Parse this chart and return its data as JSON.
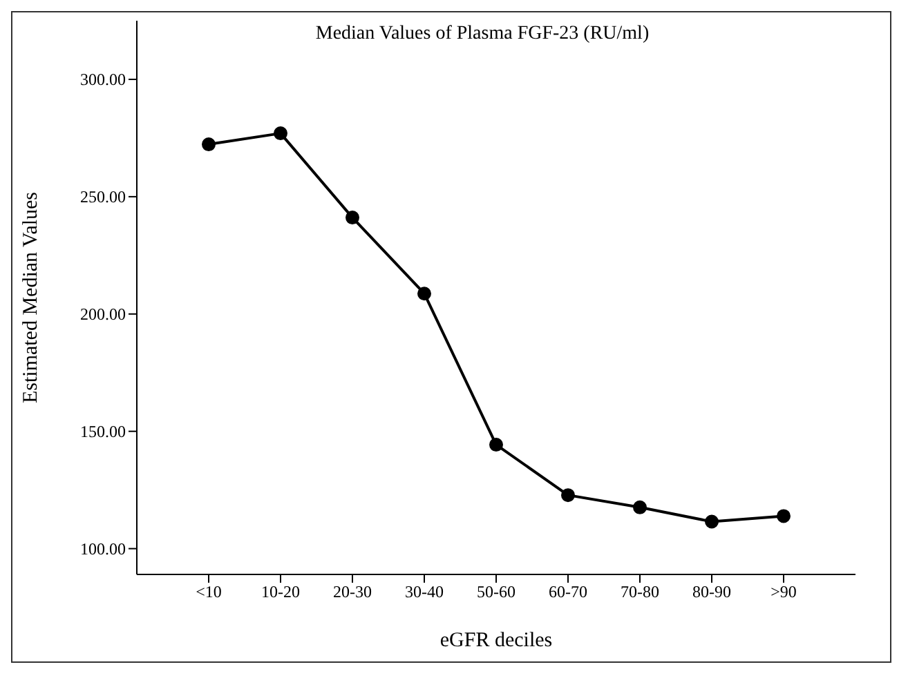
{
  "chart_data": {
    "type": "line",
    "title": "Median Values of Plasma FGF-23 (RU/ml)",
    "xlabel": "eGFR deciles",
    "ylabel": "Estimated Median Values",
    "categories": [
      "<10",
      "10-20",
      "20-30",
      "30-40",
      "50-60",
      "60-70",
      "70-80",
      "80-90",
      ">90"
    ],
    "series": [
      {
        "color": "#000000",
        "values": [
          272.3,
          277,
          241.1,
          208.7,
          144.3,
          122.8,
          117.6,
          111.5,
          113.9
        ]
      }
    ],
    "ylim": [
      89,
      325
    ],
    "yticks": [
      {
        "value": 100,
        "label": "100.00"
      },
      {
        "value": 150,
        "label": "150.00"
      },
      {
        "value": 200,
        "label": "200.00"
      },
      {
        "value": 250,
        "label": "250.00"
      },
      {
        "value": 300,
        "label": "300.00"
      }
    ],
    "grid": false,
    "marker": "circle",
    "line_style": "solid"
  }
}
